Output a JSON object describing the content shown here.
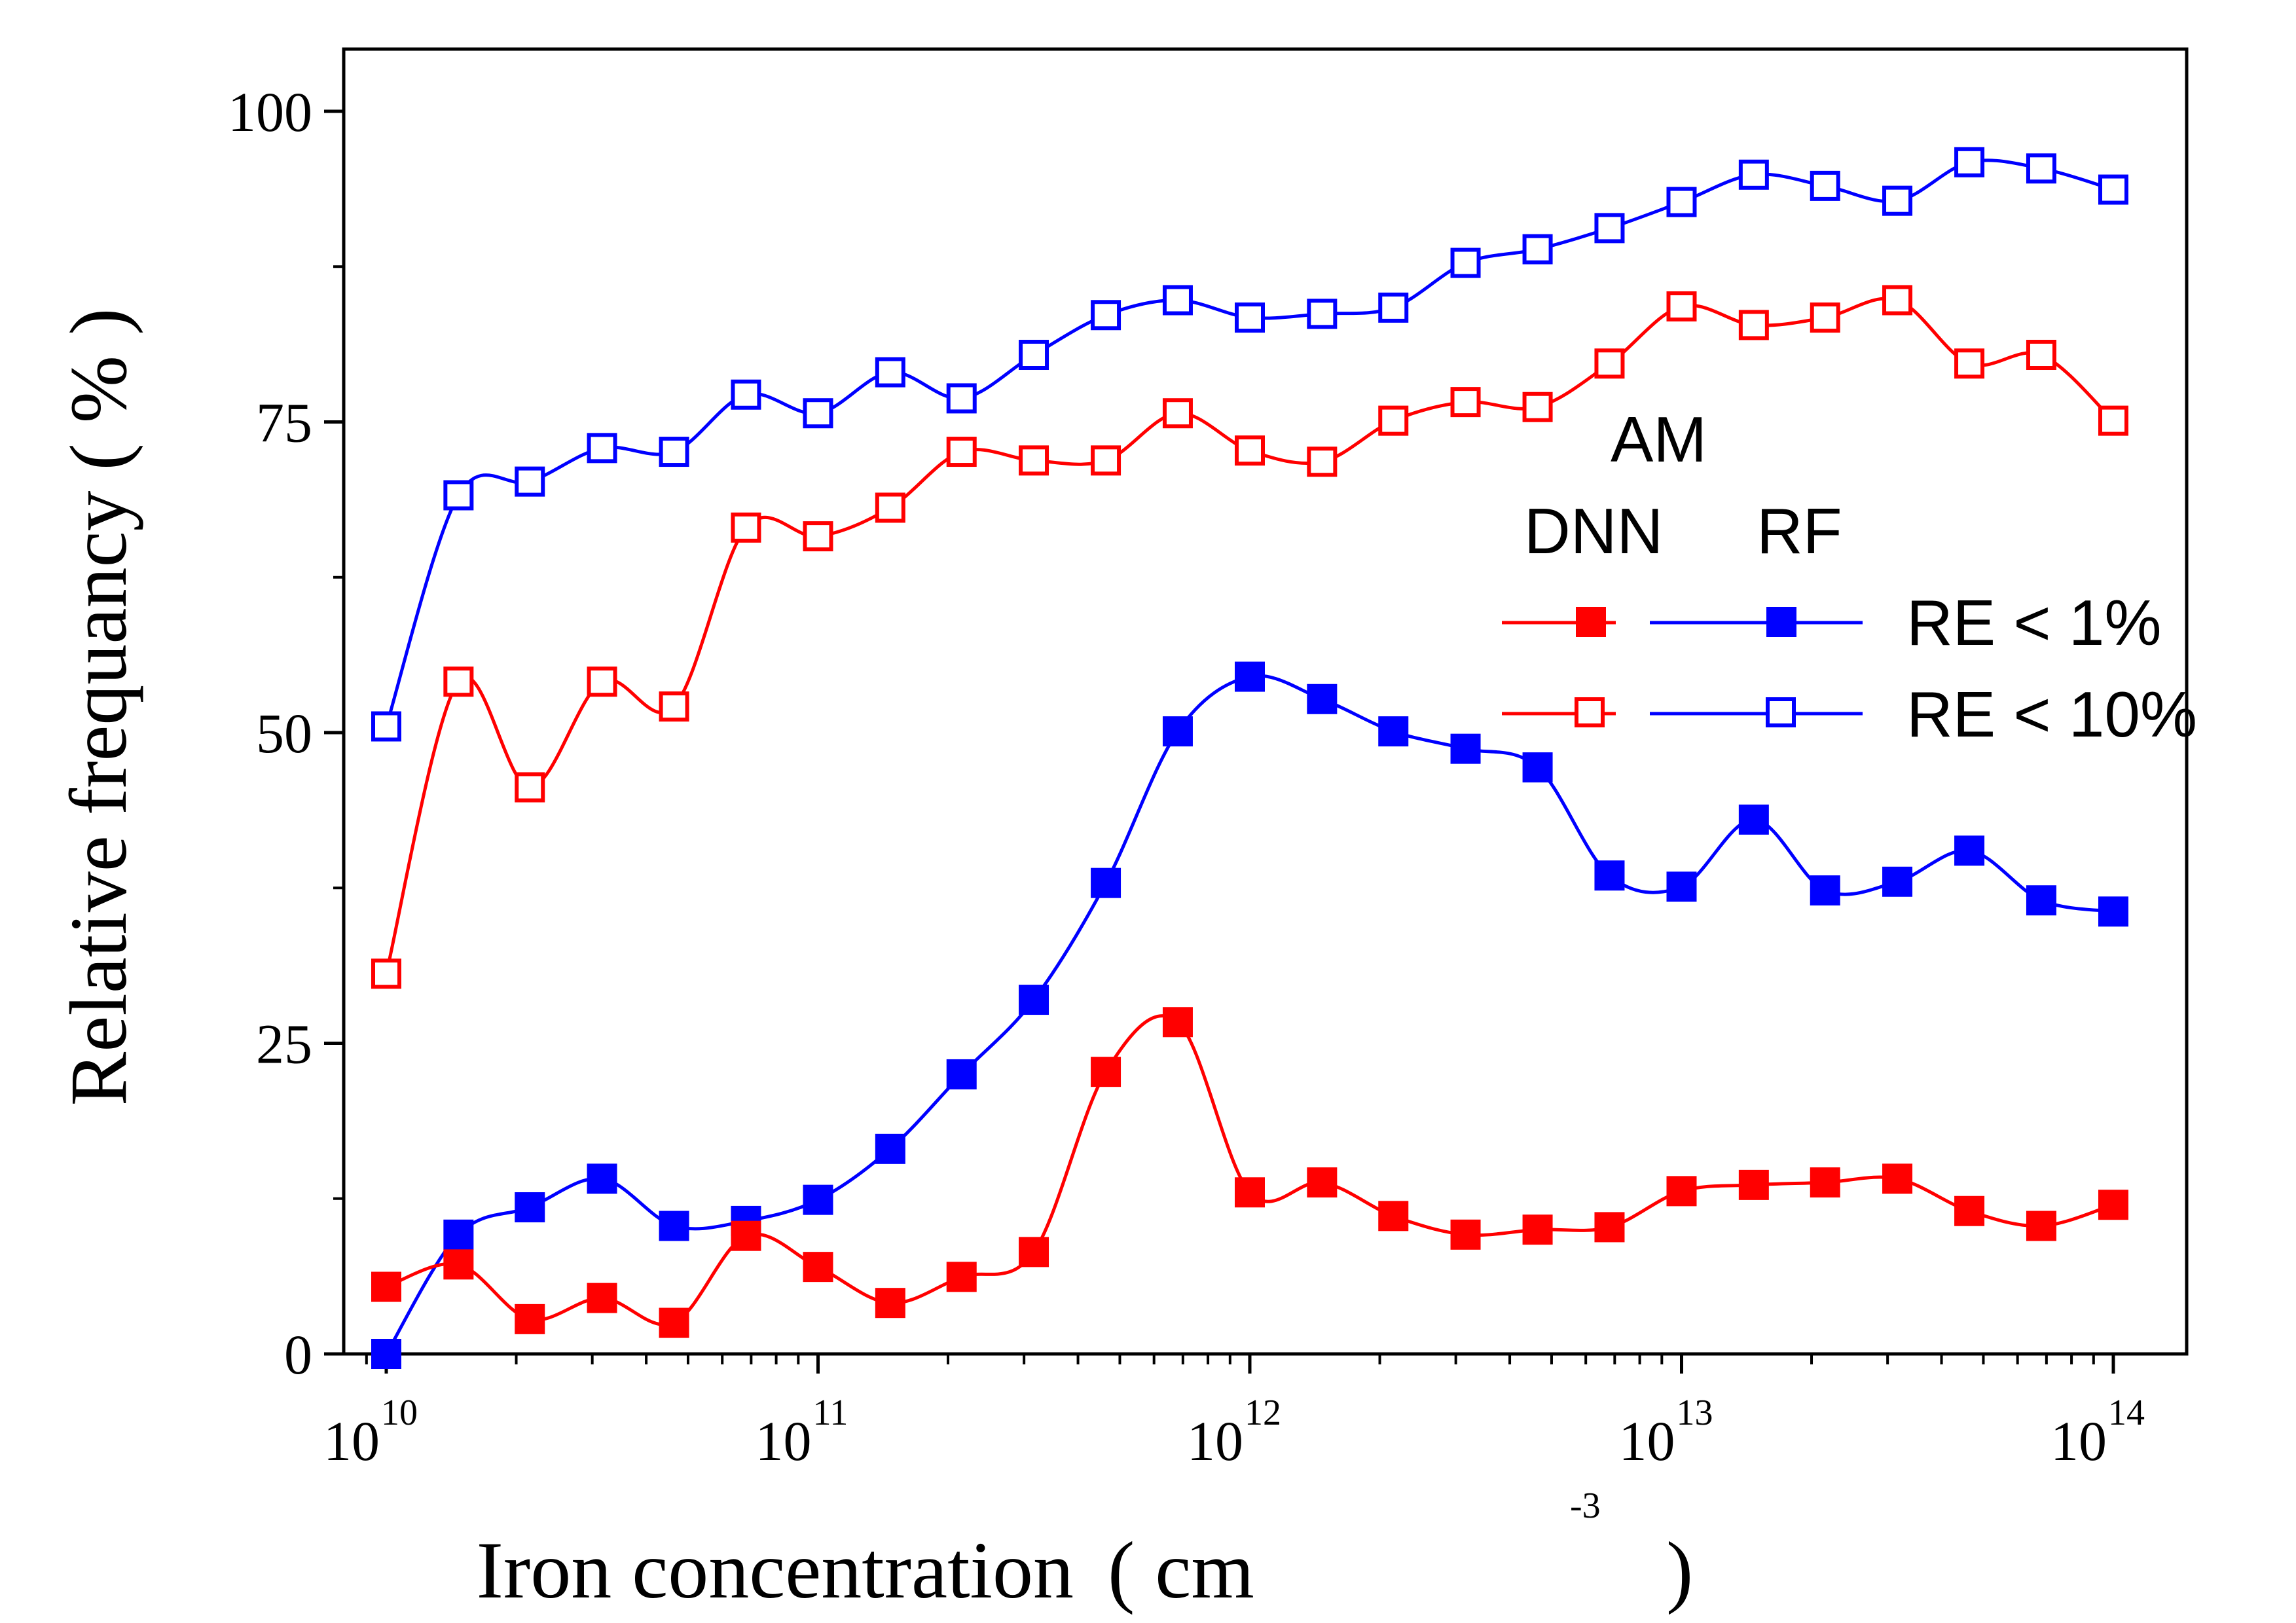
{
  "chart_data": {
    "type": "line",
    "xscale": "log",
    "xlabel": "Iron concentration",
    "xlabel_unit_open": "( cm",
    "xlabel_unit_exp": "-3",
    "xlabel_unit_close": ")",
    "ylabel": "Relative frequancy ( % )",
    "xlim": [
      10000000000.0,
      100000000000000.0
    ],
    "ylim": [
      0,
      105
    ],
    "xticks": [
      {
        "value": 10000000000.0,
        "base": "10",
        "exp": "10"
      },
      {
        "value": 100000000000.0,
        "base": "10",
        "exp": "11"
      },
      {
        "value": 1000000000000.0,
        "base": "10",
        "exp": "12"
      },
      {
        "value": 10000000000000.0,
        "base": "10",
        "exp": "13"
      },
      {
        "value": 100000000000000.0,
        "base": "10",
        "exp": "14"
      }
    ],
    "yticks": [
      {
        "value": 0,
        "label": "0"
      },
      {
        "value": 25,
        "label": "25"
      },
      {
        "value": 50,
        "label": "50"
      },
      {
        "value": 75,
        "label": "75"
      },
      {
        "value": 100,
        "label": "100"
      }
    ],
    "x": [
      10000000000.0,
      14700000000.0,
      21500000000.0,
      31600000000.0,
      46400000000.0,
      68100000000.0,
      100000000000.0,
      147000000000.0,
      215000000000.0,
      316000000000.0,
      464000000000.0,
      681000000000.0,
      1000000000000.0,
      1470000000000.0,
      2150000000000.0,
      3160000000000.0,
      4640000000000.0,
      6810000000000.0,
      10000000000000.0,
      14700000000000.0,
      21500000000000.0,
      31600000000000.0,
      46400000000000.0,
      68100000000000.0,
      100000000000000.0
    ],
    "series": [
      {
        "key": "rf10",
        "color": "#0000ff",
        "marker": "open-square",
        "values": [
          50.5,
          69.1,
          70.2,
          72.9,
          72.6,
          77.2,
          75.7,
          79.0,
          76.9,
          80.4,
          83.6,
          84.8,
          83.4,
          83.7,
          84.2,
          87.8,
          88.9,
          90.6,
          92.7,
          94.9,
          94.0,
          92.8,
          95.9,
          95.4,
          93.7
        ]
      },
      {
        "key": "dnn10",
        "color": "#ff0000",
        "marker": "open-square",
        "values": [
          30.6,
          54.1,
          45.6,
          54.1,
          52.1,
          66.5,
          65.8,
          68.1,
          72.6,
          71.9,
          71.9,
          75.7,
          72.7,
          71.8,
          75.1,
          76.6,
          76.2,
          79.7,
          84.3,
          82.8,
          83.4,
          84.8,
          79.7,
          80.4,
          75.1
        ]
      },
      {
        "key": "rf1",
        "color": "#0000ff",
        "marker": "filled-square",
        "values": [
          0.0,
          9.6,
          11.8,
          14.1,
          10.3,
          10.7,
          12.4,
          16.5,
          22.5,
          28.5,
          37.9,
          50.1,
          54.5,
          52.7,
          50.1,
          48.7,
          47.2,
          38.5,
          37.6,
          43.0,
          37.3,
          38.0,
          40.5,
          36.5,
          35.6
        ]
      },
      {
        "key": "dnn1",
        "color": "#ff0000",
        "marker": "filled-square",
        "values": [
          5.4,
          7.2,
          2.8,
          4.5,
          2.5,
          9.5,
          7.0,
          4.1,
          6.2,
          8.2,
          22.7,
          26.7,
          13.0,
          13.8,
          11.1,
          9.6,
          10.0,
          10.2,
          13.1,
          13.6,
          13.8,
          14.1,
          11.5,
          10.3,
          12.0
        ]
      }
    ],
    "legend": {
      "position": "right",
      "group_title": "AM",
      "col1": "DNN",
      "col2": "RF",
      "row1": "RE < 1%",
      "row2": "RE < 10%"
    },
    "grid": false
  }
}
